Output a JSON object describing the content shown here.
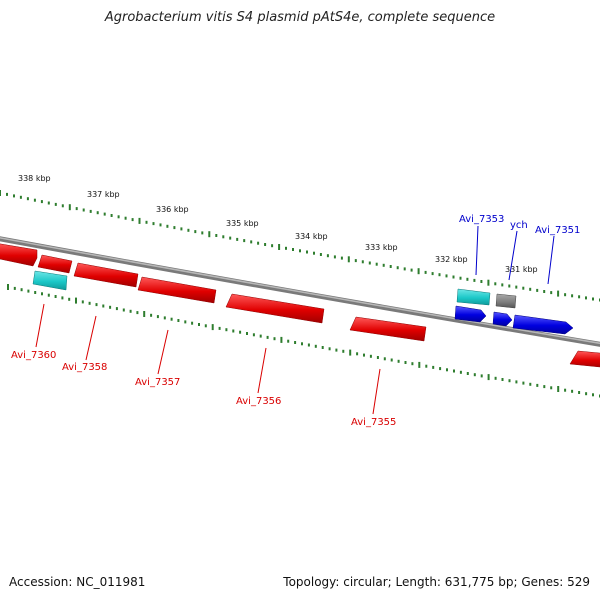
{
  "title": "Agrobacterium vitis S4 plasmid pAtS4e, complete sequence",
  "footer": {
    "accession": "Accession: NC_011981",
    "summary": "Topology: circular; Length: 631,775 bp; Genes: 529"
  },
  "scale_ticks": [
    "338 kbp",
    "337 kbp",
    "336 kbp",
    "335 kbp",
    "334 kbp",
    "333 kbp",
    "332 kbp",
    "331 kbp"
  ],
  "genes": {
    "reverse": [
      {
        "id": "Avi_7360",
        "color": "#d90000"
      },
      {
        "id": "Avi_7358",
        "color": "#d90000"
      },
      {
        "id": "Avi_7357",
        "color": "#d90000"
      },
      {
        "id": "Avi_7356",
        "color": "#d90000"
      },
      {
        "id": "Avi_7355",
        "color": "#d90000"
      }
    ],
    "forward": [
      {
        "id": "Avi_7353",
        "color": "#0000cc"
      },
      {
        "id": "ych",
        "color": "#0000cc"
      },
      {
        "id": "Avi_7351",
        "color": "#0000cc"
      }
    ]
  },
  "colors": {
    "backbone": "#7a7a7a",
    "tick": "#2e7d2e",
    "cds_red": "#e00000",
    "cds_blue": "#0000e0",
    "cyan": "#1cc8c8",
    "gray": "#808080"
  }
}
